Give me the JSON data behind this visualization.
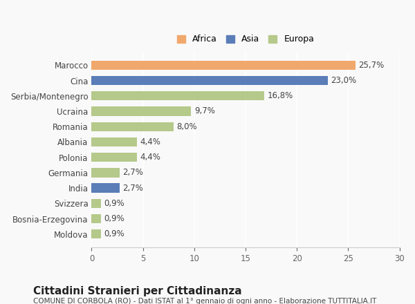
{
  "categories": [
    "Moldova",
    "Bosnia-Erzegovina",
    "Svizzera",
    "India",
    "Germania",
    "Polonia",
    "Albania",
    "Romania",
    "Ucraina",
    "Serbia/Montenegro",
    "Cina",
    "Marocco"
  ],
  "values": [
    0.9,
    0.9,
    0.9,
    2.7,
    2.7,
    4.4,
    4.4,
    8.0,
    9.7,
    16.8,
    23.0,
    25.7
  ],
  "labels": [
    "0,9%",
    "0,9%",
    "0,9%",
    "2,7%",
    "2,7%",
    "4,4%",
    "4,4%",
    "8,0%",
    "9,7%",
    "16,8%",
    "23,0%",
    "25,7%"
  ],
  "colors": [
    "#b5c98a",
    "#b5c98a",
    "#b5c98a",
    "#5b7db8",
    "#b5c98a",
    "#b5c98a",
    "#b5c98a",
    "#b5c98a",
    "#b5c98a",
    "#b5c98a",
    "#5b7db8",
    "#f0a86c"
  ],
  "legend_labels": [
    "Africa",
    "Asia",
    "Europa"
  ],
  "legend_colors": [
    "#f0a86c",
    "#5b7db8",
    "#b5c98a"
  ],
  "xlim": [
    0,
    30
  ],
  "xticks": [
    0,
    5,
    10,
    15,
    20,
    25,
    30
  ],
  "title": "Cittadini Stranieri per Cittadinanza",
  "subtitle": "COMUNE DI CORBOLA (RO) - Dati ISTAT al 1° gennaio di ogni anno - Elaborazione TUTTITALIA.IT",
  "background_color": "#f9f9f9",
  "bar_height": 0.6,
  "label_fontsize": 8.5,
  "ytick_fontsize": 8.5,
  "xtick_fontsize": 8.5,
  "title_fontsize": 11,
  "subtitle_fontsize": 7.5,
  "legend_fontsize": 9
}
